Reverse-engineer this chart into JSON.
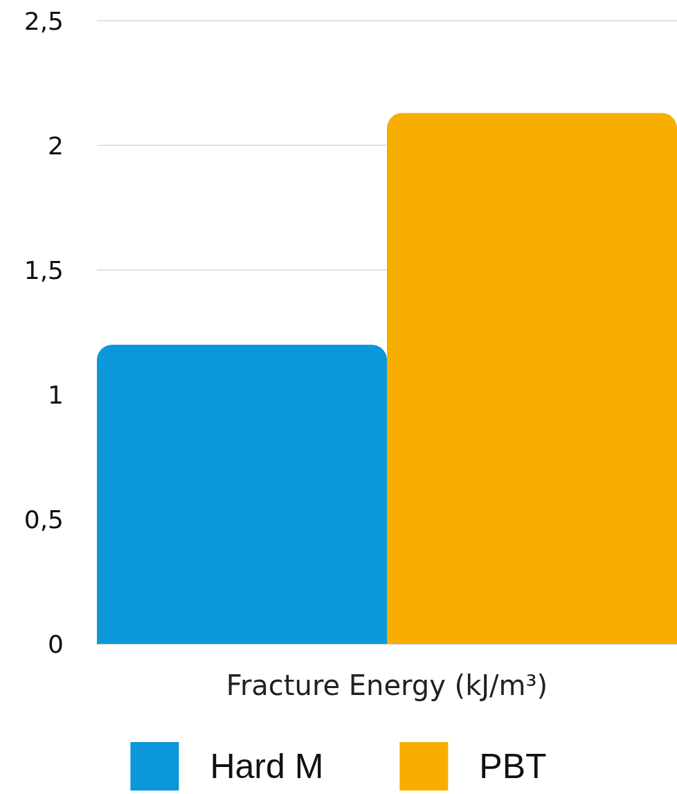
{
  "chart_data": {
    "type": "bar",
    "categories": [
      "Fracture Energy (kJ/m³)"
    ],
    "series": [
      {
        "name": "Hard M",
        "color": "#0b97d9",
        "values": [
          1.2
        ]
      },
      {
        "name": "PBT",
        "color": "#f8ae00",
        "values": [
          2.13
        ]
      }
    ],
    "ylim": [
      0,
      2.5
    ],
    "yticks": [
      0,
      {
        "value": 0.5,
        "label": "0,5"
      },
      1,
      {
        "value": 1.5,
        "label": "1,5"
      },
      2,
      {
        "value": 2.5,
        "label": "2,5"
      }
    ],
    "grid": "y",
    "legend": "bottom"
  }
}
